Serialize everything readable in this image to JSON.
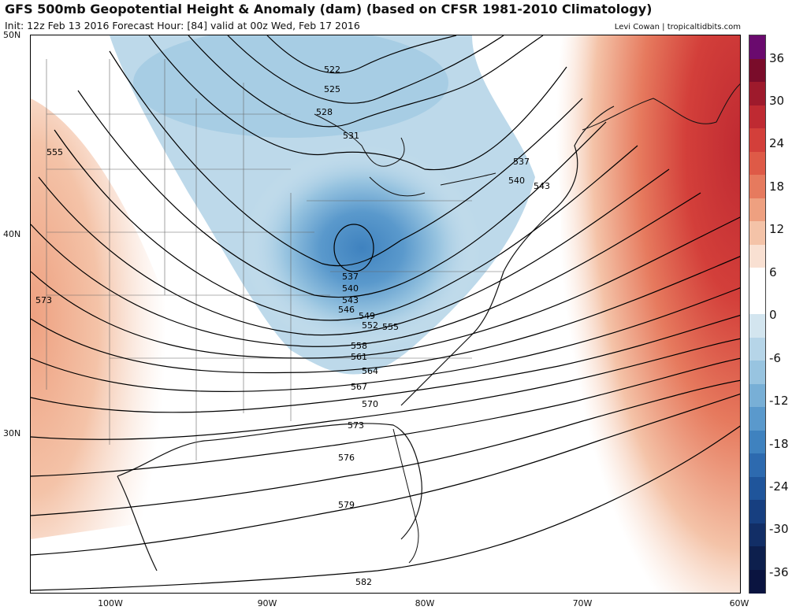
{
  "header": {
    "title": "GFS 500mb Geopotential Height & Anomaly (dam) (based on CFSR 1981-2010 Climatology)",
    "subtitle": "Init: 12z Feb 13 2016   Forecast Hour: [84]   valid at 00z Wed, Feb 17 2016",
    "credit": "Levi Cowan | tropicaltidbits.com"
  },
  "axes": {
    "lat_labels": [
      "50N",
      "40N",
      "30N"
    ],
    "lon_labels": [
      "100W",
      "90W",
      "80W",
      "70W",
      "60W"
    ]
  },
  "contours": {
    "labels": [
      "522",
      "525",
      "528",
      "531",
      "537",
      "540",
      "543",
      "537",
      "540",
      "543",
      "546",
      "549",
      "552",
      "555",
      "558",
      "561",
      "564",
      "567",
      "570",
      "573",
      "576",
      "579",
      "582",
      "555",
      "573"
    ]
  },
  "colorbar": {
    "labels": [
      "36",
      "30",
      "24",
      "18",
      "12",
      "6",
      "0",
      "-6",
      "-12",
      "-18",
      "-24",
      "-30",
      "-36"
    ],
    "colors": [
      "#6a0a6e",
      "#7a0c2a",
      "#9e1a2c",
      "#bf2a32",
      "#d33f3a",
      "#de5a47",
      "#e67a5e",
      "#eea080",
      "#f4c3a8",
      "#f9e0d2",
      "#ffffff",
      "#ffffff",
      "#d3e5ef",
      "#b6d5e8",
      "#98c4e0",
      "#78afd6",
      "#5a99cc",
      "#3f82bf",
      "#2d6aaf",
      "#1f559b",
      "#173f80",
      "#122e66",
      "#0d1f4d",
      "#0a1440"
    ]
  }
}
